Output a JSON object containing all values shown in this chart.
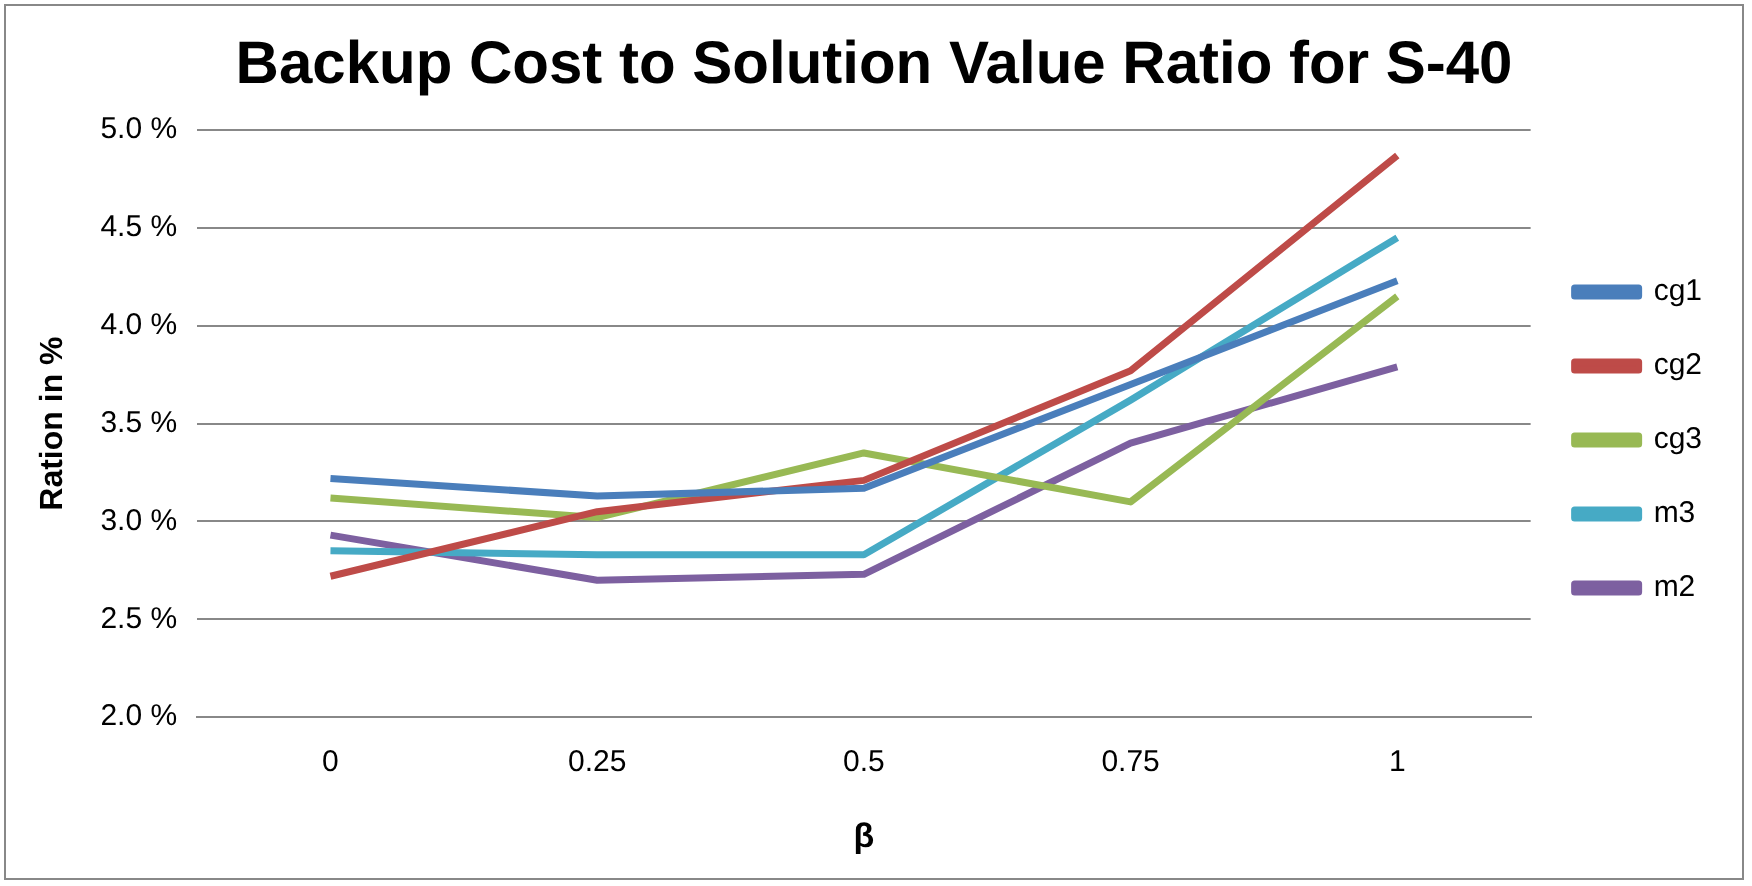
{
  "chart_data": {
    "type": "line",
    "title": "Backup Cost to Solution Value Ratio for S-40",
    "xlabel": "β",
    "ylabel": "Ration in %",
    "categories": [
      "0",
      "0.25",
      "0.5",
      "0.75",
      "1"
    ],
    "series": [
      {
        "name": "cg1",
        "color": "#4a7ebb",
        "values": [
          3.22,
          3.13,
          3.17,
          3.7,
          4.23
        ]
      },
      {
        "name": "cg2",
        "color": "#be4b48",
        "values": [
          2.72,
          3.05,
          3.21,
          3.77,
          4.87
        ]
      },
      {
        "name": "cg3",
        "color": "#98b954",
        "values": [
          3.12,
          3.02,
          3.35,
          3.1,
          4.15
        ]
      },
      {
        "name": "m3",
        "color": "#46aac5",
        "values": [
          2.85,
          2.83,
          2.83,
          3.62,
          4.45
        ]
      },
      {
        "name": "m2",
        "color": "#7d60a0",
        "values": [
          2.93,
          2.7,
          2.73,
          3.4,
          3.79
        ]
      }
    ],
    "ylim": [
      2.0,
      5.0
    ],
    "yticks": [
      {
        "value": 2.0,
        "label": "2.0 %"
      },
      {
        "value": 2.5,
        "label": "2.5 %"
      },
      {
        "value": 3.0,
        "label": "3.0 %"
      },
      {
        "value": 3.5,
        "label": "3.5 %"
      },
      {
        "value": 4.0,
        "label": "4.0 %"
      },
      {
        "value": 4.5,
        "label": "4.5 %"
      },
      {
        "value": 5.0,
        "label": "5.0 %"
      }
    ],
    "grid": "y",
    "legend": "right",
    "marker": "none",
    "line_style": "solid"
  }
}
